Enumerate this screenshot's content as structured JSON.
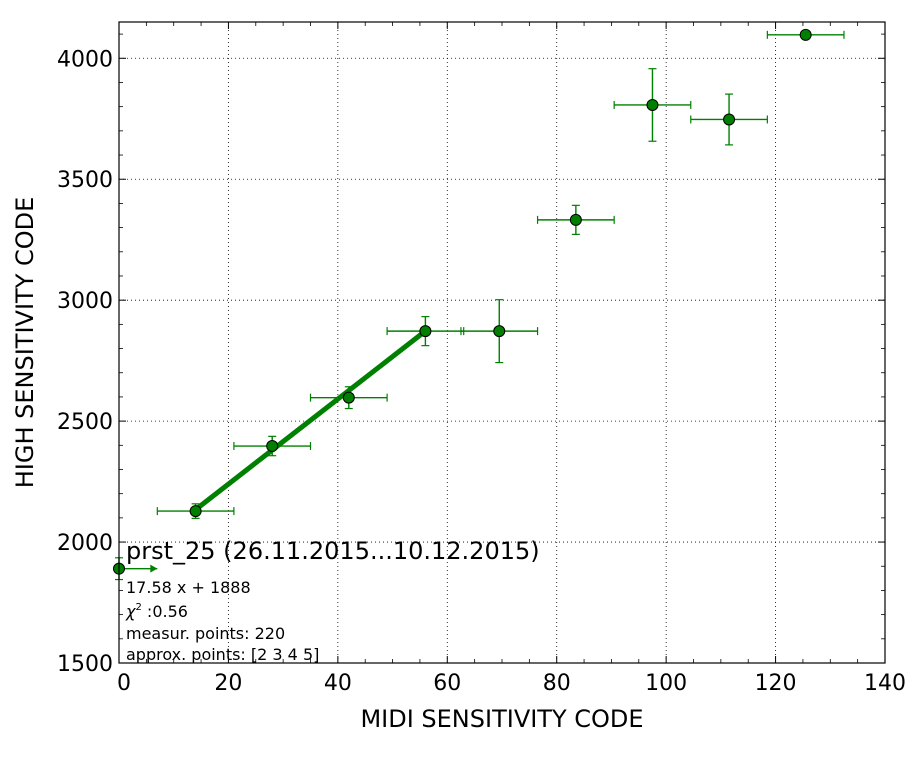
{
  "chart_data": {
    "type": "scatter",
    "title": "",
    "xlabel": "MIDI SENSITIVITY CODE",
    "ylabel": "HIGH SENSITIVITY CODE",
    "xlim": [
      0,
      140
    ],
    "ylim": [
      1500,
      4150
    ],
    "x_ticks": [
      0,
      20,
      40,
      60,
      80,
      100,
      120,
      140
    ],
    "y_ticks": [
      1500,
      2000,
      2500,
      3000,
      3500,
      4000
    ],
    "grid": true,
    "series": [
      {
        "color": "#008000",
        "marker_face": "#007f00",
        "points": [
          {
            "x": 0,
            "y": 1890,
            "xerr": 7,
            "yerr": 45,
            "xerr_one_sided_right": true
          },
          {
            "x": 14,
            "y": 2128,
            "xerr": 7,
            "yerr": 30
          },
          {
            "x": 28,
            "y": 2397,
            "xerr": 7,
            "yerr": 40
          },
          {
            "x": 42,
            "y": 2597,
            "xerr": 7,
            "yerr": 45
          },
          {
            "x": 56,
            "y": 2872,
            "xerr": 7,
            "yerr": 60
          },
          {
            "x": 69.5,
            "y": 2872,
            "xerr": 7,
            "yerr": 130
          },
          {
            "x": 83.5,
            "y": 3332,
            "xerr": 7,
            "yerr": 60
          },
          {
            "x": 97.5,
            "y": 3807,
            "xerr": 7,
            "yerr": 150
          },
          {
            "x": 111.5,
            "y": 3747,
            "xerr": 7,
            "yerr": 105
          },
          {
            "x": 125.5,
            "y": 4097,
            "xerr": 7,
            "yerr": 0
          }
        ]
      }
    ],
    "fit_line": {
      "slope": 17.58,
      "intercept": 1888,
      "x_range": [
        14,
        56
      ],
      "color": "#008000"
    },
    "annotations": {
      "title": "prst_25 (26.11.2015...10.12.2015)",
      "equation": "17.58 x + 1888",
      "chi_label": "χ",
      "chi_sup": "2",
      "chi_value": " :0.56",
      "measur_points": "measur. points: 220",
      "approx_points": "approx. points: [2 3 4 5]"
    }
  }
}
